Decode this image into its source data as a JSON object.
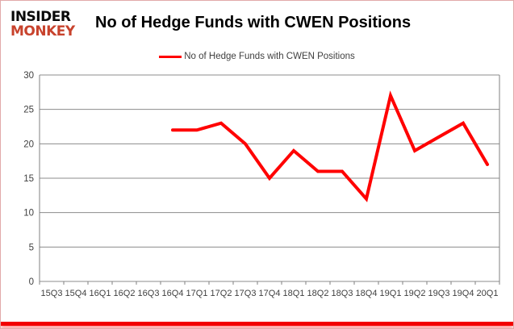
{
  "page": {
    "background": "#ffffff",
    "border_color": "#e2a9a9",
    "bottom_bar_color": "#f20000"
  },
  "logo": {
    "line1": "INSIDER",
    "line2": "MONKEY",
    "line1_color": "#0a0a0a",
    "line2_color": "#c8432d"
  },
  "header": {
    "title": "No of Hedge Funds with CWEN Positions"
  },
  "legend": {
    "label": "No of Hedge Funds with CWEN Positions",
    "line_color": "#ff0000"
  },
  "chart_data": {
    "type": "line",
    "title": "No of Hedge Funds with CWEN Positions",
    "categories": [
      "15Q3",
      "15Q4",
      "16Q1",
      "16Q2",
      "16Q3",
      "16Q4",
      "17Q1",
      "17Q2",
      "17Q3",
      "17Q4",
      "18Q1",
      "18Q2",
      "18Q3",
      "18Q4",
      "19Q1",
      "19Q2",
      "19Q3",
      "19Q4",
      "20Q1"
    ],
    "series": [
      {
        "name": "No of Hedge Funds with CWEN Positions",
        "color": "#ff0000",
        "values": [
          null,
          null,
          null,
          null,
          null,
          22,
          22,
          23,
          20,
          15,
          19,
          16,
          16,
          12,
          27,
          19,
          21,
          23,
          17
        ]
      }
    ],
    "xlabel": "",
    "ylabel": "",
    "ylim": [
      0,
      30
    ],
    "ytick_step": 5,
    "grid": "horizontal",
    "gridline_color": "#8c8c8c",
    "axis_color": "#808080",
    "tick_label_color": "#3f3f3f",
    "legend_position": "top-center"
  }
}
